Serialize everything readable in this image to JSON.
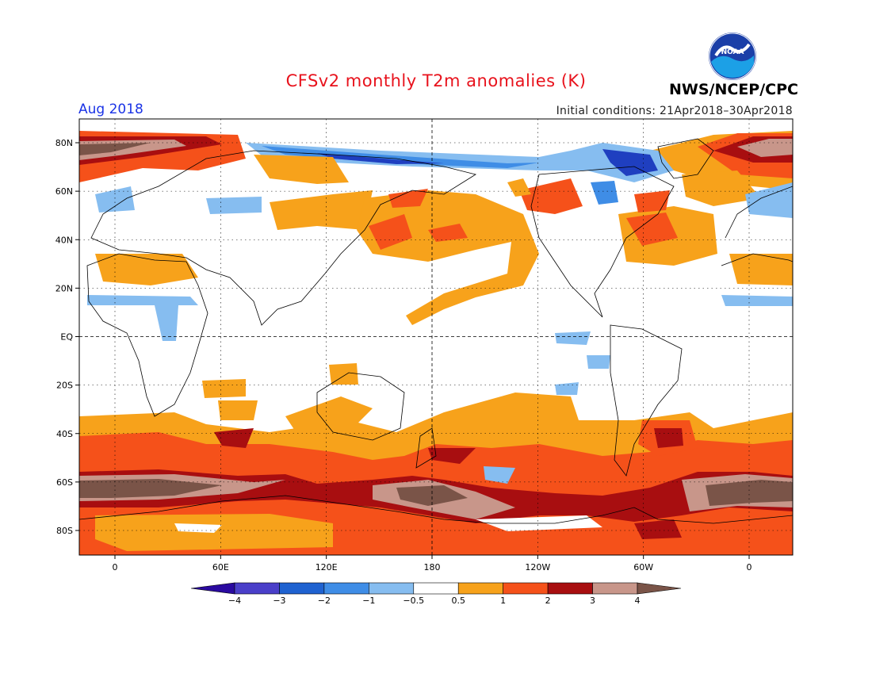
{
  "title": "CFSv2 monthly T2m anomalies (K)",
  "month_label": "Aug 2018",
  "initial_conditions": "Initial conditions: 21Apr2018–30Apr2018",
  "agency": "NWS/NCEP/CPC",
  "logo_text": "NOAA",
  "map": {
    "lon_ticks": [
      "0",
      "60E",
      "120E",
      "180",
      "120W",
      "60W",
      "0"
    ],
    "lat_ticks": [
      "80N",
      "60N",
      "40N",
      "20N",
      "EQ",
      "20S",
      "40S",
      "60S",
      "80S"
    ]
  },
  "colorbar": {
    "labels": [
      "−4",
      "−3",
      "−2",
      "−1",
      "−0.5",
      "0.5",
      "1",
      "2",
      "3",
      "4"
    ],
    "colors": [
      "#2a0aa0",
      "#4a3fc9",
      "#1f62d0",
      "#3f8de6",
      "#86bdf0",
      "#ffffff",
      "#f7a21b",
      "#f5511a",
      "#a80e10",
      "#c8968a",
      "#7a5448"
    ]
  },
  "palette": {
    "lightblue": "#86bdf0",
    "medblue": "#3f8de6",
    "darkblue": "#1f3fc0",
    "orange": "#f7a21b",
    "redorange": "#f5511a",
    "darkred": "#a80e10",
    "pink": "#c8968a",
    "brown": "#7a5448"
  }
}
